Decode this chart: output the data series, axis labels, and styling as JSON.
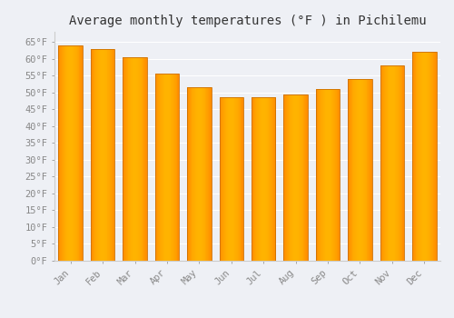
{
  "title": "Average monthly temperatures (°F ) in Pichilemu",
  "months": [
    "Jan",
    "Feb",
    "Mar",
    "Apr",
    "May",
    "Jun",
    "Jul",
    "Aug",
    "Sep",
    "Oct",
    "Nov",
    "Dec"
  ],
  "values": [
    64,
    63,
    60.5,
    55.5,
    51.5,
    48.5,
    48.5,
    49.5,
    51,
    54,
    58,
    62
  ],
  "bar_color_center": "#FFB300",
  "bar_color_edge": "#FF8C00",
  "background_color": "#EEF0F5",
  "plot_bg_color": "#EEF0F5",
  "grid_color": "#FFFFFF",
  "ylim": [
    0,
    68
  ],
  "yticks": [
    0,
    5,
    10,
    15,
    20,
    25,
    30,
    35,
    40,
    45,
    50,
    55,
    60,
    65
  ],
  "ytick_labels": [
    "0°F",
    "5°F",
    "10°F",
    "15°F",
    "20°F",
    "25°F",
    "30°F",
    "35°F",
    "40°F",
    "45°F",
    "50°F",
    "55°F",
    "60°F",
    "65°F"
  ],
  "title_fontsize": 10,
  "tick_fontsize": 7.5,
  "tick_color": "#888888",
  "spine_color": "#CCCCCC",
  "figsize": [
    5.0,
    3.5
  ],
  "dpi": 100,
  "bar_width": 0.75
}
